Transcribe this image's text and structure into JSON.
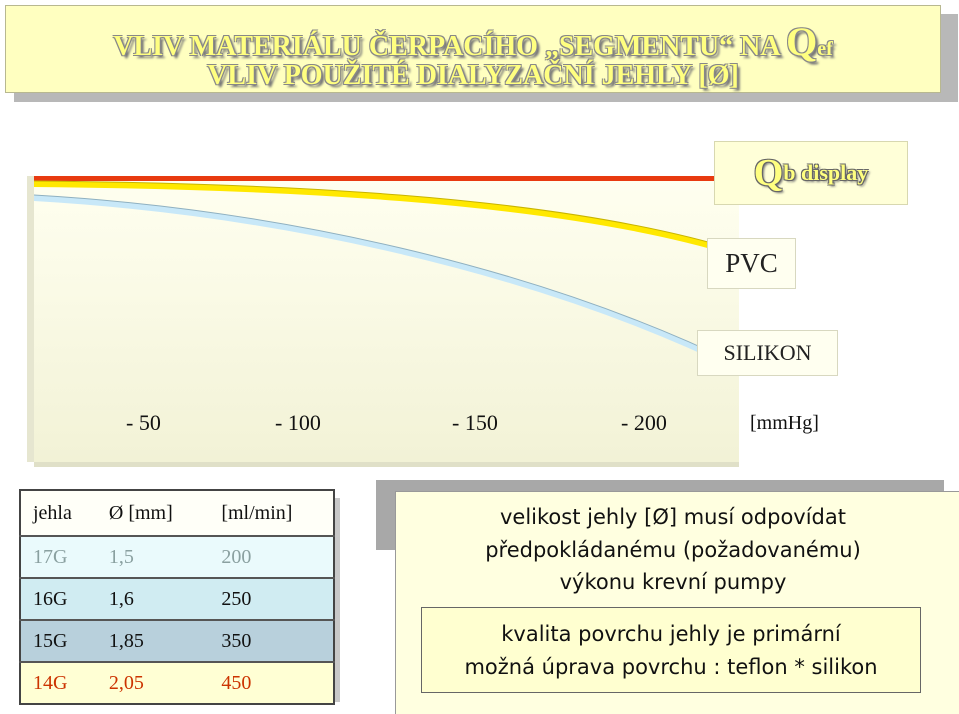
{
  "title": {
    "line1": "VLIV MATERIÁLU ČERPACÍHO „SEGMENTU“ NA ",
    "line1_q": "Q",
    "line1_sub": "ef",
    "line2": "VLIV POUŽITÉ DIALYZAČNÍ JEHLY [Ø]"
  },
  "legend": {
    "qb_q": "Q",
    "qb_text": "b display",
    "pvc": "PVC",
    "silikon": "SILIKON"
  },
  "axis": {
    "ticks": [
      "- 50",
      "- 100",
      "- 150",
      "- 200"
    ],
    "unit": "[mmHg]"
  },
  "colors": {
    "red_line": "#e83a10",
    "yellow_line": "#ffe800",
    "blue_line": "#c8e8f8"
  },
  "needle_table": {
    "headers": [
      "jehla",
      "Ø [mm]",
      "[ml/min]"
    ],
    "rows": [
      [
        "17G",
        "1,5",
        "200"
      ],
      [
        "16G",
        "1,6",
        "250"
      ],
      [
        "15G",
        "1,85",
        "350"
      ],
      [
        "14G",
        "2,05",
        "450"
      ]
    ]
  },
  "info": {
    "line1": "velikost jehly [Ø] musí odpovídat",
    "line2": "předpokládanému (požadovanému)",
    "line3": "výkonu krevní pumpy",
    "box_line1": "kvalita povrchu jehly je primární",
    "box_line2": "možná úprava povrchu : teflon * silikon"
  }
}
